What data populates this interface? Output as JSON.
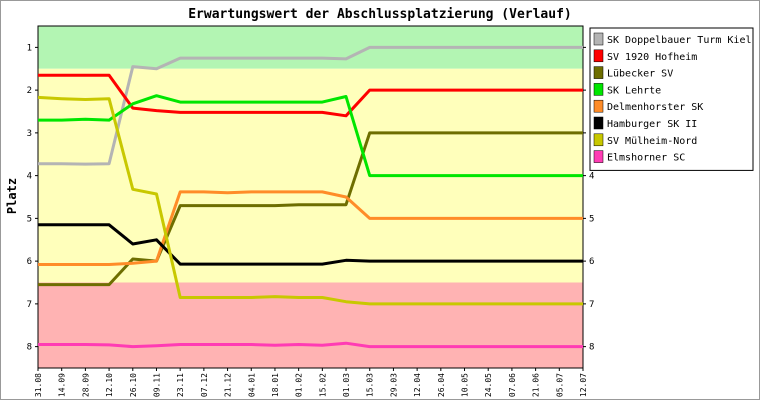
{
  "chart_data": {
    "type": "line",
    "title": "Erwartungswert der Abschlussplatzierung (Verlauf)",
    "ylabel": "Platz",
    "xlabel": "",
    "ylim": [
      0.5,
      8.5
    ],
    "y_inverted": true,
    "y_ticks": [
      1,
      2,
      3,
      4,
      5,
      6,
      7,
      8
    ],
    "grid": false,
    "legend_position": "right",
    "bands": [
      {
        "from": 0.5,
        "to": 1.5,
        "color": "#b3f5b3"
      },
      {
        "from": 1.5,
        "to": 6.5,
        "color": "#ffffbb"
      },
      {
        "from": 6.5,
        "to": 8.5,
        "color": "#ffb3b3"
      }
    ],
    "x": [
      "31.08",
      "14.09",
      "28.09",
      "12.10",
      "26.10",
      "09.11",
      "23.11",
      "07.12",
      "21.12",
      "04.01",
      "18.01",
      "01.02",
      "15.02",
      "01.03",
      "15.03",
      "29.03",
      "12.04",
      "26.04",
      "10.05",
      "24.05",
      "07.06",
      "21.06",
      "05.07",
      "12.07"
    ],
    "series": [
      {
        "name": "SK Doppelbauer Turm Kiel",
        "color": "#b4b4b4",
        "values": [
          3.72,
          3.72,
          3.73,
          3.72,
          1.45,
          1.5,
          1.25,
          1.25,
          1.25,
          1.25,
          1.25,
          1.25,
          1.25,
          1.27,
          1.0,
          1.0,
          1.0,
          1.0,
          1.0,
          1.0,
          1.0,
          1.0,
          1.0,
          1.0
        ]
      },
      {
        "name": "SV 1920 Hofheim",
        "color": "#ff0000",
        "values": [
          1.65,
          1.65,
          1.65,
          1.65,
          2.42,
          2.48,
          2.52,
          2.52,
          2.52,
          2.52,
          2.52,
          2.52,
          2.52,
          2.6,
          2.0,
          2.0,
          2.0,
          2.0,
          2.0,
          2.0,
          2.0,
          2.0,
          2.0,
          2.0
        ]
      },
      {
        "name": "Lübecker SV",
        "color": "#6e6e00",
        "values": [
          6.55,
          6.55,
          6.55,
          6.55,
          5.95,
          6.0,
          4.7,
          4.7,
          4.7,
          4.7,
          4.7,
          4.68,
          4.68,
          4.68,
          3.0,
          3.0,
          3.0,
          3.0,
          3.0,
          3.0,
          3.0,
          3.0,
          3.0,
          3.0
        ]
      },
      {
        "name": "SK Lehrte",
        "color": "#00e600",
        "values": [
          2.7,
          2.7,
          2.68,
          2.7,
          2.32,
          2.13,
          2.28,
          2.28,
          2.28,
          2.28,
          2.28,
          2.28,
          2.28,
          2.15,
          4.0,
          4.0,
          4.0,
          4.0,
          4.0,
          4.0,
          4.0,
          4.0,
          4.0,
          4.0
        ]
      },
      {
        "name": "Delmenhorster SK",
        "color": "#ff8c28",
        "values": [
          6.08,
          6.08,
          6.08,
          6.08,
          6.05,
          6.0,
          4.38,
          4.38,
          4.4,
          4.38,
          4.38,
          4.38,
          4.38,
          4.5,
          5.0,
          5.0,
          5.0,
          5.0,
          5.0,
          5.0,
          5.0,
          5.0,
          5.0,
          5.0
        ]
      },
      {
        "name": "Hamburger SK II",
        "color": "#000000",
        "values": [
          5.15,
          5.15,
          5.15,
          5.15,
          5.6,
          5.5,
          6.07,
          6.07,
          6.07,
          6.07,
          6.07,
          6.07,
          6.07,
          5.98,
          6.0,
          6.0,
          6.0,
          6.0,
          6.0,
          6.0,
          6.0,
          6.0,
          6.0,
          6.0
        ]
      },
      {
        "name": "SV Mülheim-Nord",
        "color": "#c8c800",
        "values": [
          2.17,
          2.2,
          2.22,
          2.2,
          4.32,
          4.43,
          6.85,
          6.85,
          6.85,
          6.85,
          6.83,
          6.85,
          6.85,
          6.95,
          7.0,
          7.0,
          7.0,
          7.0,
          7.0,
          7.0,
          7.0,
          7.0,
          7.0,
          7.0
        ]
      },
      {
        "name": "Elmshorner SC",
        "color": "#ff3cb4",
        "values": [
          7.95,
          7.95,
          7.95,
          7.96,
          8.0,
          7.98,
          7.95,
          7.95,
          7.95,
          7.95,
          7.97,
          7.95,
          7.97,
          7.92,
          8.0,
          8.0,
          8.0,
          8.0,
          8.0,
          8.0,
          8.0,
          8.0,
          8.0,
          8.0
        ]
      }
    ]
  }
}
